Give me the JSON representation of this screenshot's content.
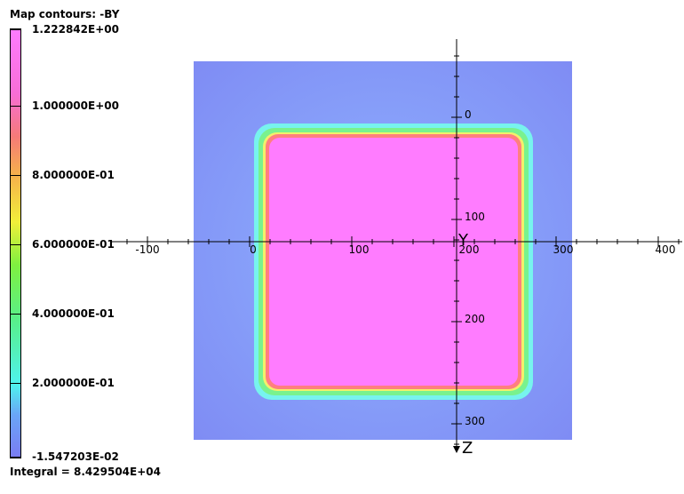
{
  "title": "Map contours: -BY",
  "integral": "Integral = 8.429504E+04",
  "colorbar": {
    "labels": [
      "1.222842E+00",
      "1.000000E+00",
      "8.000000E-01",
      "6.000000E-01",
      "4.000000E-01",
      "2.000000E-01",
      "-1.547203E-02"
    ]
  },
  "axes": {
    "x_name": "Y",
    "z_name": "Z",
    "x_ticks": [
      "-100",
      "0",
      "100",
      "200",
      "300",
      "400"
    ],
    "z_ticks": [
      "0",
      "100",
      "200",
      "300"
    ]
  },
  "colors": {
    "outer_field": "#7f9cff",
    "inner_field": "#ff7cff",
    "edge_red": "#ff7f7f",
    "edge_yellow": "#f3f06a",
    "edge_green": "#79f28e",
    "edge_cyan": "#77f3ee"
  }
}
